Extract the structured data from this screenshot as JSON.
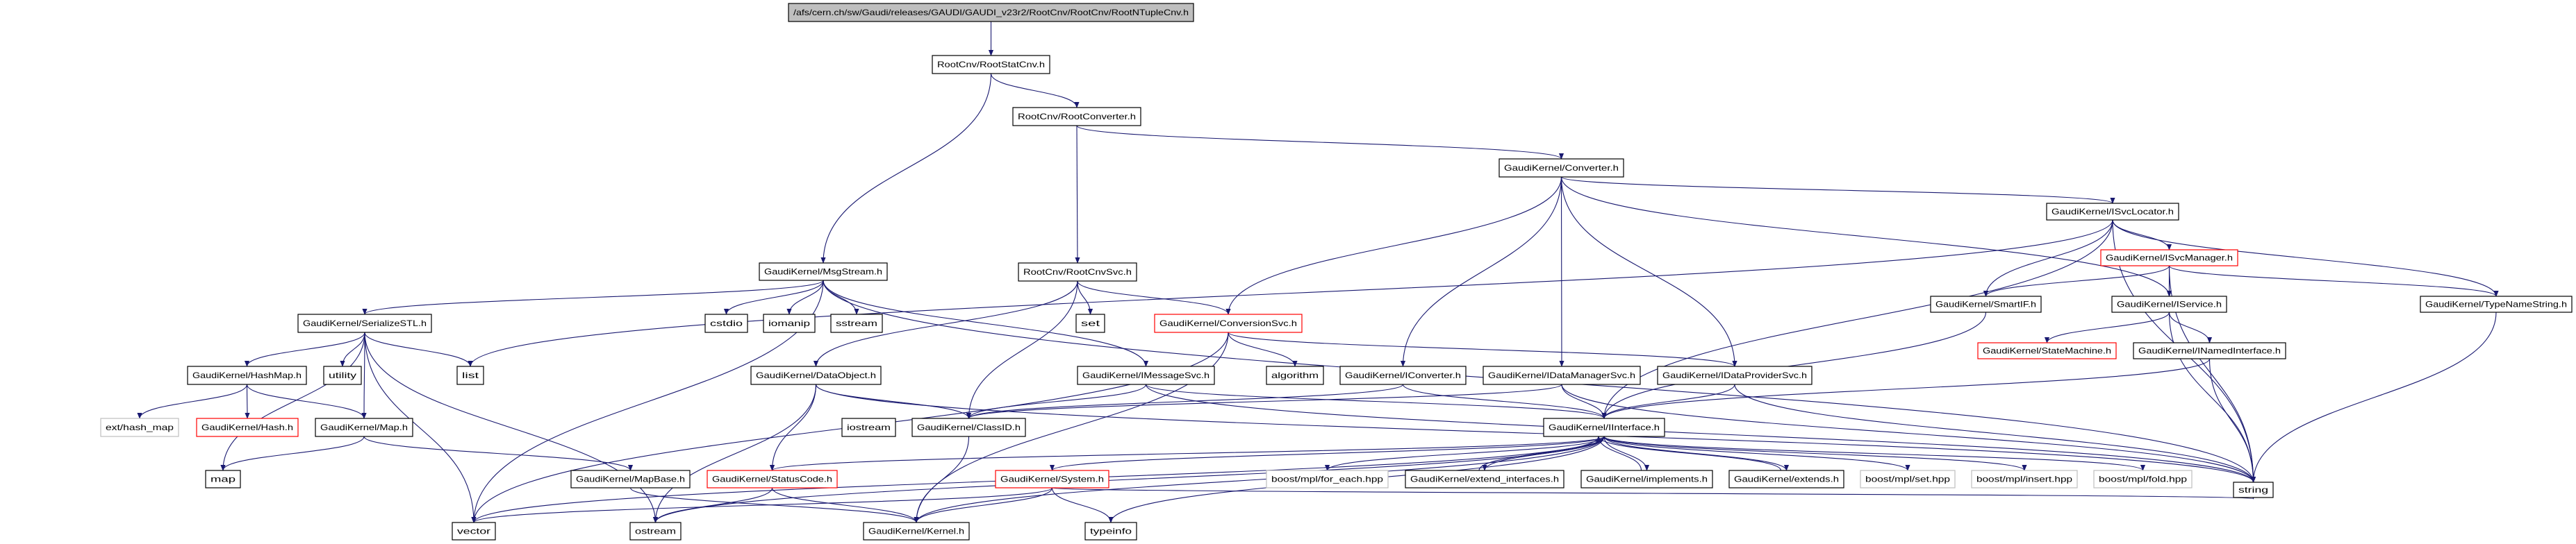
{
  "colors": {
    "edge": "#191970",
    "normal_border": "#000000",
    "red_border": "#ff0000",
    "gray_border": "#bfbfbf",
    "root_fill": "#bfbfbf"
  },
  "nodes": [
    {
      "id": "root",
      "label": "/afs/cern.ch/sw/Gaudi/releases/GAUDI/GAUDI_v23r2/RootCnv/RootCnv/RootNTupleCnv.h",
      "kind": "root"
    },
    {
      "id": "rootstatcnv",
      "label": "RootCnv/RootStatCnv.h",
      "kind": "normal"
    },
    {
      "id": "rootconverter",
      "label": "RootCnv/RootConverter.h",
      "kind": "normal"
    },
    {
      "id": "converter",
      "label": "GaudiKernel/Converter.h",
      "kind": "normal"
    },
    {
      "id": "isvclocator",
      "label": "GaudiKernel/ISvcLocator.h",
      "kind": "normal"
    },
    {
      "id": "msgstream",
      "label": "GaudiKernel/MsgStream.h",
      "kind": "normal"
    },
    {
      "id": "rootcnvsvc",
      "label": "RootCnv/RootCnvSvc.h",
      "kind": "normal"
    },
    {
      "id": "isvcmanager",
      "label": "GaudiKernel/ISvcManager.h",
      "kind": "red"
    },
    {
      "id": "serializestl",
      "label": "GaudiKernel/SerializeSTL.h",
      "kind": "normal"
    },
    {
      "id": "cstdio",
      "label": "cstdio",
      "kind": "normal"
    },
    {
      "id": "iomanip",
      "label": "iomanip",
      "kind": "normal"
    },
    {
      "id": "sstream",
      "label": "sstream",
      "kind": "normal"
    },
    {
      "id": "set",
      "label": "set",
      "kind": "normal"
    },
    {
      "id": "conversionsvc",
      "label": "GaudiKernel/ConversionSvc.h",
      "kind": "red"
    },
    {
      "id": "smartif",
      "label": "GaudiKernel/SmartIF.h",
      "kind": "normal"
    },
    {
      "id": "iservice",
      "label": "GaudiKernel/IService.h",
      "kind": "normal"
    },
    {
      "id": "typenamestring",
      "label": "GaudiKernel/TypeNameString.h",
      "kind": "normal"
    },
    {
      "id": "hashmap",
      "label": "GaudiKernel/HashMap.h",
      "kind": "normal"
    },
    {
      "id": "utility",
      "label": "utility",
      "kind": "normal"
    },
    {
      "id": "list",
      "label": "list",
      "kind": "normal"
    },
    {
      "id": "dataobject",
      "label": "GaudiKernel/DataObject.h",
      "kind": "normal"
    },
    {
      "id": "imessagesvc",
      "label": "GaudiKernel/IMessageSvc.h",
      "kind": "normal"
    },
    {
      "id": "algorithm",
      "label": "algorithm",
      "kind": "normal"
    },
    {
      "id": "iconverter",
      "label": "GaudiKernel/IConverter.h",
      "kind": "normal"
    },
    {
      "id": "idatamanagersvc",
      "label": "GaudiKernel/IDataManagerSvc.h",
      "kind": "normal"
    },
    {
      "id": "idataprovidersvc",
      "label": "GaudiKernel/IDataProviderSvc.h",
      "kind": "normal"
    },
    {
      "id": "statemachine",
      "label": "GaudiKernel/StateMachine.h",
      "kind": "red"
    },
    {
      "id": "inamedinterface",
      "label": "GaudiKernel/INamedInterface.h",
      "kind": "normal"
    },
    {
      "id": "exthashmap",
      "label": "ext/hash_map",
      "kind": "gray"
    },
    {
      "id": "hash",
      "label": "GaudiKernel/Hash.h",
      "kind": "red"
    },
    {
      "id": "map_h",
      "label": "GaudiKernel/Map.h",
      "kind": "normal"
    },
    {
      "id": "iostream",
      "label": "iostream",
      "kind": "normal"
    },
    {
      "id": "classid",
      "label": "GaudiKernel/ClassID.h",
      "kind": "normal"
    },
    {
      "id": "iinterface",
      "label": "GaudiKernel/IInterface.h",
      "kind": "normal"
    },
    {
      "id": "map",
      "label": "map",
      "kind": "normal"
    },
    {
      "id": "mapbase",
      "label": "GaudiKernel/MapBase.h",
      "kind": "normal"
    },
    {
      "id": "statuscode",
      "label": "GaudiKernel/StatusCode.h",
      "kind": "red"
    },
    {
      "id": "system",
      "label": "GaudiKernel/System.h",
      "kind": "red"
    },
    {
      "id": "foreach",
      "label": "boost/mpl/for_each.hpp",
      "kind": "gray"
    },
    {
      "id": "extendinterfaces",
      "label": "GaudiKernel/extend_interfaces.h",
      "kind": "normal"
    },
    {
      "id": "implements",
      "label": "GaudiKernel/implements.h",
      "kind": "normal"
    },
    {
      "id": "extends",
      "label": "GaudiKernel/extends.h",
      "kind": "normal"
    },
    {
      "id": "mplset",
      "label": "boost/mpl/set.hpp",
      "kind": "gray"
    },
    {
      "id": "mplinsert",
      "label": "boost/mpl/insert.hpp",
      "kind": "gray"
    },
    {
      "id": "mplfold",
      "label": "boost/mpl/fold.hpp",
      "kind": "gray"
    },
    {
      "id": "vector",
      "label": "vector",
      "kind": "normal"
    },
    {
      "id": "ostream",
      "label": "ostream",
      "kind": "normal"
    },
    {
      "id": "kernel",
      "label": "GaudiKernel/Kernel.h",
      "kind": "normal"
    },
    {
      "id": "typeinfo",
      "label": "typeinfo",
      "kind": "normal"
    },
    {
      "id": "string",
      "label": "string",
      "kind": "normal"
    }
  ],
  "edges": [
    [
      "root",
      "rootstatcnv"
    ],
    [
      "rootstatcnv",
      "rootconverter"
    ],
    [
      "rootstatcnv",
      "msgstream"
    ],
    [
      "rootconverter",
      "converter"
    ],
    [
      "rootconverter",
      "rootcnvsvc"
    ],
    [
      "converter",
      "isvclocator"
    ],
    [
      "converter",
      "conversionsvc"
    ],
    [
      "converter",
      "iconverter"
    ],
    [
      "converter",
      "idatamanagersvc"
    ],
    [
      "converter",
      "idataprovidersvc"
    ],
    [
      "converter",
      "iservice"
    ],
    [
      "isvclocator",
      "list"
    ],
    [
      "isvclocator",
      "iinterface"
    ],
    [
      "isvclocator",
      "smartif"
    ],
    [
      "isvclocator",
      "isvcmanager"
    ],
    [
      "isvclocator",
      "string"
    ],
    [
      "isvclocator",
      "typenamestring"
    ],
    [
      "isvcmanager",
      "smartif"
    ],
    [
      "isvcmanager",
      "iservice"
    ],
    [
      "isvcmanager",
      "typenamestring"
    ],
    [
      "isvcmanager",
      "string"
    ],
    [
      "iservice",
      "statemachine"
    ],
    [
      "iservice",
      "inamedinterface"
    ],
    [
      "iservice",
      "string"
    ],
    [
      "smartif",
      "iinterface"
    ],
    [
      "inamedinterface",
      "iinterface"
    ],
    [
      "inamedinterface",
      "string"
    ],
    [
      "typenamestring",
      "string"
    ],
    [
      "msgstream",
      "serializestl"
    ],
    [
      "msgstream",
      "cstdio"
    ],
    [
      "msgstream",
      "iomanip"
    ],
    [
      "msgstream",
      "sstream"
    ],
    [
      "msgstream",
      "vector"
    ],
    [
      "msgstream",
      "imessagesvc"
    ],
    [
      "msgstream",
      "string"
    ],
    [
      "serializestl",
      "hashmap"
    ],
    [
      "serializestl",
      "utility"
    ],
    [
      "serializestl",
      "list"
    ],
    [
      "serializestl",
      "map_h"
    ],
    [
      "serializestl",
      "ostream"
    ],
    [
      "serializestl",
      "vector"
    ],
    [
      "serializestl",
      "map"
    ],
    [
      "hashmap",
      "exthashmap"
    ],
    [
      "hashmap",
      "hash"
    ],
    [
      "hashmap",
      "map_h"
    ],
    [
      "map_h",
      "map"
    ],
    [
      "map_h",
      "mapbase"
    ],
    [
      "mapbase",
      "kernel"
    ],
    [
      "rootcnvsvc",
      "set"
    ],
    [
      "rootcnvsvc",
      "conversionsvc"
    ],
    [
      "rootcnvsvc",
      "dataobject"
    ],
    [
      "rootcnvsvc",
      "classid"
    ],
    [
      "conversionsvc",
      "algorithm"
    ],
    [
      "conversionsvc",
      "idataprovidersvc"
    ],
    [
      "conversionsvc",
      "vector"
    ],
    [
      "conversionsvc",
      "kernel"
    ],
    [
      "dataobject",
      "classid"
    ],
    [
      "dataobject",
      "statuscode"
    ],
    [
      "dataobject",
      "ostream"
    ],
    [
      "dataobject",
      "string"
    ],
    [
      "imessagesvc",
      "iinterface"
    ],
    [
      "imessagesvc",
      "classid"
    ],
    [
      "imessagesvc",
      "string"
    ],
    [
      "iconverter",
      "classid"
    ],
    [
      "iconverter",
      "iinterface"
    ],
    [
      "idatamanagersvc",
      "classid"
    ],
    [
      "idatamanagersvc",
      "iinterface"
    ],
    [
      "idatamanagersvc",
      "string"
    ],
    [
      "idataprovidersvc",
      "iinterface"
    ],
    [
      "idataprovidersvc",
      "string"
    ],
    [
      "iinterface",
      "vector"
    ],
    [
      "iinterface",
      "ostream"
    ],
    [
      "iinterface",
      "kernel"
    ],
    [
      "iinterface",
      "statuscode"
    ],
    [
      "iinterface",
      "system"
    ],
    [
      "iinterface",
      "typeinfo"
    ],
    [
      "iinterface",
      "foreach"
    ],
    [
      "iinterface",
      "extendinterfaces"
    ],
    [
      "iinterface",
      "implements"
    ],
    [
      "iinterface",
      "extends"
    ],
    [
      "iinterface",
      "mplset"
    ],
    [
      "iinterface",
      "mplinsert"
    ],
    [
      "iinterface",
      "mplfold"
    ],
    [
      "extendinterfaces",
      "iinterface"
    ],
    [
      "implements",
      "iinterface"
    ],
    [
      "extends",
      "iinterface"
    ],
    [
      "statuscode",
      "ostream"
    ],
    [
      "statuscode",
      "kernel"
    ],
    [
      "system",
      "kernel"
    ],
    [
      "system",
      "typeinfo"
    ],
    [
      "system",
      "vector"
    ],
    [
      "system",
      "string"
    ],
    [
      "classid",
      "kernel"
    ]
  ]
}
